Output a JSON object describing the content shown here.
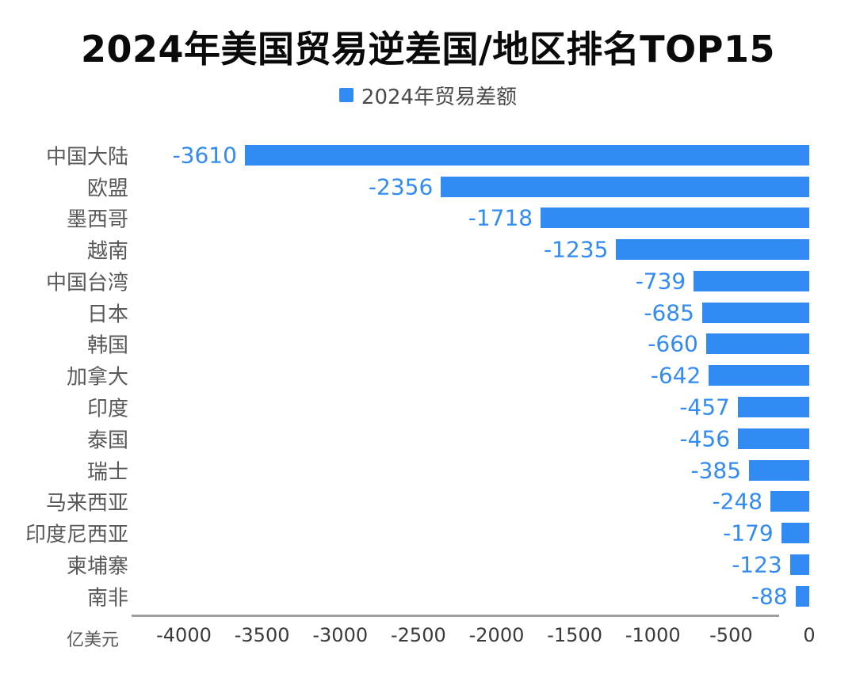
{
  "title": "2024年美国贸易逆差国/地区排名TOP15",
  "legend": {
    "label": "2024年贸易差额"
  },
  "axis": {
    "unit_label": "亿美元"
  },
  "colors": {
    "bar": "#318bf2",
    "value_label": "#318bf2",
    "category_label": "#595959",
    "axis_line": "#9e9e9e",
    "tick_label": "#3a3a3a",
    "title": "#0a0a0a",
    "legend_text": "#4a4a4a"
  },
  "chart_data": {
    "type": "bar",
    "orientation": "horizontal",
    "title": "2024年美国贸易逆差国/地区排名TOP15",
    "legend": [
      "2024年贸易差额"
    ],
    "categories": [
      "中国大陆",
      "欧盟",
      "墨西哥",
      "越南",
      "中国台湾",
      "日本",
      "韩国",
      "加拿大",
      "印度",
      "泰国",
      "瑞士",
      "马来西亚",
      "印度尼西亚",
      "柬埔寨",
      "南非"
    ],
    "values": [
      -3610,
      -2356,
      -1718,
      -1235,
      -739,
      -685,
      -660,
      -642,
      -457,
      -456,
      -385,
      -248,
      -179,
      -123,
      -88
    ],
    "xlabel": "亿美元",
    "xlim": [
      -4330,
      0
    ],
    "xticks": [
      -4000,
      -3500,
      -3000,
      -2500,
      -2000,
      -1500,
      -1000,
      -500,
      0
    ],
    "grid": false,
    "legend_position": "top-center",
    "value_labels_shown": true
  }
}
